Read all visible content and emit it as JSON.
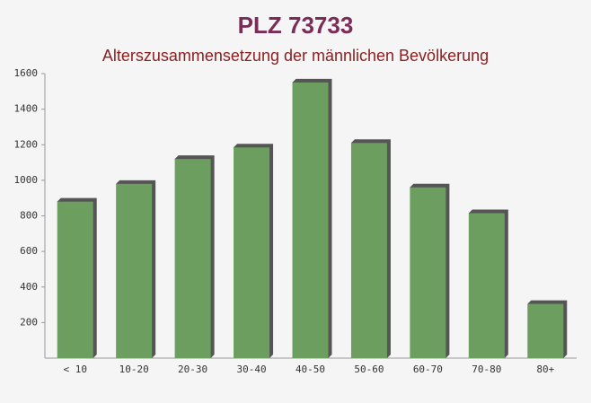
{
  "chart_data": {
    "type": "bar",
    "title": "PLZ 73733",
    "subtitle": "Alterszusammensetzung der männlichen Bevölkerung",
    "categories": [
      "< 10",
      "10-20",
      "20-30",
      "30-40",
      "40-50",
      "50-60",
      "60-70",
      "70-80",
      "80+"
    ],
    "values": [
      880,
      980,
      1120,
      1185,
      1550,
      1210,
      960,
      815,
      305
    ],
    "color": "#6b9e5f",
    "ylim": [
      0,
      1600
    ],
    "yticks": [
      200,
      400,
      600,
      800,
      1000,
      1200,
      1400,
      1600
    ],
    "grid": false
  }
}
